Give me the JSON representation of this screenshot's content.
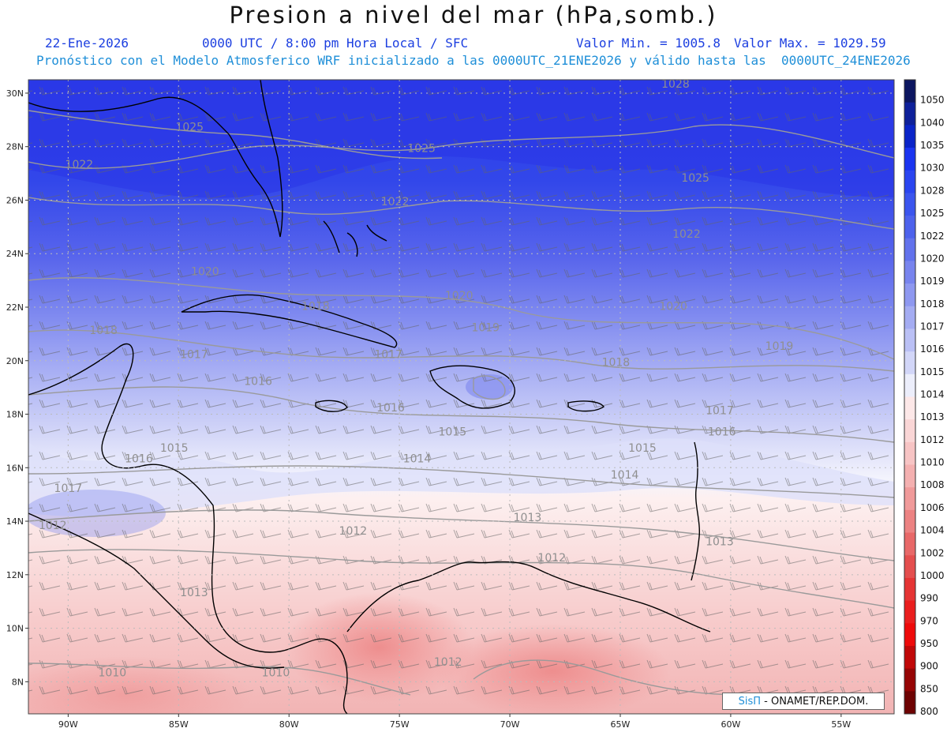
{
  "header": {
    "title": "Presion a nivel del mar (hPa,somb.)",
    "date": "22-Ene-2026",
    "time": "0000 UTC / 8:00 pm Hora Local / SFC",
    "min": "Valor Min. = 1005.8",
    "max": "Valor Max. = 1029.59",
    "forecast": "Pronóstico con el Modelo Atmosferico WRF inicializado a las 0000UTC_21ENE2026 y válido hasta las  0000UTC_24ENE2026"
  },
  "axes": {
    "lat_labels": [
      "30N",
      "28N",
      "26N",
      "24N",
      "22N",
      "20N",
      "18N",
      "16N",
      "14N",
      "12N",
      "10N",
      "8N"
    ],
    "lat_values": [
      30,
      28,
      26,
      24,
      22,
      20,
      18,
      16,
      14,
      12,
      10,
      8
    ],
    "lon_labels": [
      "90W",
      "85W",
      "80W",
      "75W",
      "70W",
      "65W",
      "60W",
      "55W"
    ],
    "lon_values": [
      -90,
      -85,
      -80,
      -75,
      -70,
      -65,
      -60,
      -55
    ],
    "lon_range": [
      -91.8,
      -52.6
    ],
    "lat_range": [
      6.8,
      30.5
    ]
  },
  "colorbar": {
    "labels": [
      "1050",
      "1040",
      "1035",
      "1030",
      "1028",
      "1025",
      "1022",
      "1020",
      "1019",
      "1018",
      "1017",
      "1016",
      "1015",
      "1014",
      "1013",
      "1012",
      "1010",
      "1008",
      "1006",
      "1004",
      "1002",
      "1000",
      "990",
      "970",
      "950",
      "900",
      "850",
      "800"
    ],
    "colors": [
      "#0c1660",
      "#0e209a",
      "#0a24c8",
      "#1a34f0",
      "#2a45f0",
      "#3b55ee",
      "#4d62ec",
      "#6272ec",
      "#7884ee",
      "#8e98f0",
      "#a4acf2",
      "#bac0f5",
      "#d2d6f8",
      "#eceefb",
      "#fde8e8",
      "#fad6d6",
      "#f7c4c4",
      "#f4b0b0",
      "#f09a9a",
      "#ec8282",
      "#e86868",
      "#e44e4e",
      "#e53434",
      "#ea1e1e",
      "#ee0a0a",
      "#c00808",
      "#960505",
      "#6e0303"
    ]
  },
  "isobars": [
    {
      "label": "1028",
      "lon": -62.5,
      "lat": 30.2
    },
    {
      "label": "1025",
      "lon": -84.5,
      "lat": 28.6
    },
    {
      "label": "1025",
      "lon": -74.0,
      "lat": 27.8
    },
    {
      "label": "1025",
      "lon": -61.6,
      "lat": 26.7
    },
    {
      "label": "1022",
      "lon": -89.5,
      "lat": 27.2
    },
    {
      "label": "1022",
      "lon": -75.2,
      "lat": 25.8
    },
    {
      "label": "1022",
      "lon": -62.0,
      "lat": 24.6
    },
    {
      "label": "1020",
      "lon": -83.8,
      "lat": 23.2
    },
    {
      "label": "1020",
      "lon": -72.3,
      "lat": 22.3
    },
    {
      "label": "1020",
      "lon": -62.6,
      "lat": 21.9
    },
    {
      "label": "1019",
      "lon": -71.1,
      "lat": 21.1
    },
    {
      "label": "1019",
      "lon": -57.8,
      "lat": 20.4
    },
    {
      "label": "1018",
      "lon": -88.4,
      "lat": 21.0
    },
    {
      "label": "1018",
      "lon": -78.8,
      "lat": 21.9
    },
    {
      "label": "1018",
      "lon": -65.2,
      "lat": 19.8
    },
    {
      "label": "1017",
      "lon": -84.3,
      "lat": 20.1
    },
    {
      "label": "1017",
      "lon": -75.5,
      "lat": 20.1
    },
    {
      "label": "1017",
      "lon": -60.5,
      "lat": 18.0
    },
    {
      "label": "1016",
      "lon": -81.4,
      "lat": 19.1
    },
    {
      "label": "1016",
      "lon": -75.4,
      "lat": 18.1
    },
    {
      "label": "1016",
      "lon": -86.8,
      "lat": 16.2
    },
    {
      "label": "1016",
      "lon": -60.4,
      "lat": 17.2
    },
    {
      "label": "1015",
      "lon": -85.2,
      "lat": 16.6
    },
    {
      "label": "1015",
      "lon": -72.6,
      "lat": 17.2
    },
    {
      "label": "1015",
      "lon": -64.0,
      "lat": 16.6
    },
    {
      "label": "1014",
      "lon": -74.2,
      "lat": 16.2
    },
    {
      "label": "1014",
      "lon": -64.8,
      "lat": 15.6
    },
    {
      "label": "1013",
      "lon": -69.2,
      "lat": 14.0
    },
    {
      "label": "1013",
      "lon": -60.5,
      "lat": 13.1
    },
    {
      "label": "1012",
      "lon": -90.7,
      "lat": 13.7
    },
    {
      "label": "1012",
      "lon": -77.1,
      "lat": 13.5
    },
    {
      "label": "1012",
      "lon": -68.1,
      "lat": 12.5
    },
    {
      "label": "1012",
      "lon": -72.8,
      "lat": 8.6
    },
    {
      "label": "1013",
      "lon": -84.3,
      "lat": 11.2
    },
    {
      "label": "1017",
      "lon": -90.0,
      "lat": 15.1
    },
    {
      "label": "1010",
      "lon": -88.0,
      "lat": 8.2
    },
    {
      "label": "1010",
      "lon": -80.6,
      "lat": 8.2
    }
  ],
  "credit": {
    "brand": "SisΠ",
    "org": " - ONAMET/REP.DOM."
  }
}
